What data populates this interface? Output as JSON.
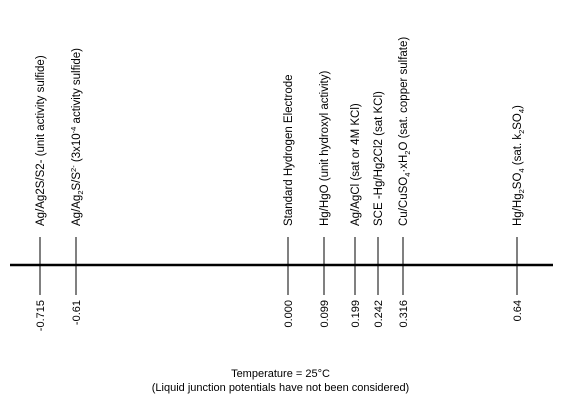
{
  "electrodes": [
    {
      "id": "ag-ag2s-unit",
      "value": "-0.715",
      "label": [
        {
          "t": "Ag/Ag2S/S2- (unit activity sulfide)"
        }
      ]
    },
    {
      "id": "ag-ag2s-3e-4",
      "value": "-0.61",
      "label": [
        {
          "t": "Ag/Ag"
        },
        {
          "t": "2",
          "s": "sub"
        },
        {
          "t": "S/S"
        },
        {
          "t": "2-",
          "s": "sup"
        },
        {
          "t": " (3x10"
        },
        {
          "t": "-4",
          "s": "sup"
        },
        {
          "t": " activity sulfide)"
        }
      ]
    },
    {
      "id": "she",
      "value": "0.000",
      "label": [
        {
          "t": "Standard Hydrogen Electrode"
        }
      ]
    },
    {
      "id": "hg-hgo",
      "value": "0.099",
      "label": [
        {
          "t": "Hg/HgO (unit hydroxyl activity)"
        }
      ]
    },
    {
      "id": "ag-agcl",
      "value": "0.199",
      "label": [
        {
          "t": "Ag/AgCl (sat or 4M KCl)"
        }
      ]
    },
    {
      "id": "sce",
      "value": "0.242",
      "label": [
        {
          "t": "SCE -Hg/Hg2Cl2 (sat KCl)"
        }
      ]
    },
    {
      "id": "cu-cuso4",
      "value": "0.316",
      "label": [
        {
          "t": "Cu/CuSO"
        },
        {
          "t": "4",
          "s": "sub"
        },
        {
          "t": "·xH"
        },
        {
          "t": "2",
          "s": "sub"
        },
        {
          "t": "O (sat. copper sulfate)"
        }
      ]
    },
    {
      "id": "hg-hg2so4",
      "value": "0.64",
      "label": [
        {
          "t": "Hg/Hg"
        },
        {
          "t": "2",
          "s": "sub"
        },
        {
          "t": "SO"
        },
        {
          "t": "4",
          "s": "sub"
        },
        {
          "t": " (sat. k"
        },
        {
          "t": "2",
          "s": "sub"
        },
        {
          "t": "SO"
        },
        {
          "t": "4",
          "s": "sub"
        },
        {
          "t": ")"
        }
      ]
    }
  ],
  "footer": {
    "temperature": "Temperature = 25°C",
    "note": "(Liquid junction potentials have not been considered)"
  }
}
